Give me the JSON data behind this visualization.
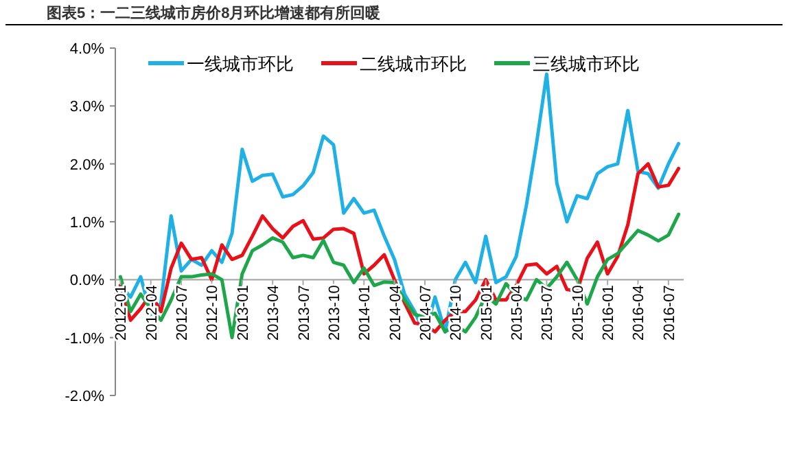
{
  "chart_data": {
    "type": "line",
    "title": "图表5：一二三线城市房价8月环比增速都有所回暖",
    "categories": [
      "2012-01",
      null,
      null,
      "2012-04",
      null,
      null,
      "2012-07",
      null,
      null,
      "2012-10",
      null,
      null,
      "2013-01",
      null,
      null,
      "2013-04",
      null,
      null,
      "2013-07",
      null,
      null,
      "2013-10",
      null,
      null,
      "2014-01",
      null,
      null,
      "2014-04",
      null,
      null,
      "2014-07",
      null,
      null,
      "2014-10",
      null,
      null,
      "2015-01",
      null,
      null,
      "2015-04",
      null,
      null,
      "2015-07",
      null,
      null,
      "2015-10",
      null,
      null,
      "2016-01",
      null,
      null,
      "2016-04",
      null,
      null,
      "2016-07",
      null
    ],
    "series": [
      {
        "name": "一线城市环比",
        "color": "#1fb0e6",
        "values": [
          -0.1,
          -0.3,
          0.05,
          -0.6,
          -0.4,
          1.1,
          0.15,
          0.35,
          0.25,
          0.5,
          0.3,
          0.8,
          2.25,
          1.7,
          1.8,
          1.82,
          1.43,
          1.47,
          1.62,
          1.85,
          2.48,
          2.33,
          1.15,
          1.4,
          1.15,
          1.2,
          0.75,
          0.35,
          -0.25,
          -0.55,
          -0.95,
          -0.3,
          -0.9,
          0.0,
          0.3,
          -0.05,
          0.75,
          -0.05,
          0.05,
          0.4,
          1.28,
          2.35,
          3.55,
          1.67,
          1.0,
          1.45,
          1.4,
          1.83,
          1.95,
          2.0,
          2.92,
          1.87,
          1.83,
          1.58,
          2.0,
          2.35
        ]
      },
      {
        "name": "二线城市环比",
        "color": "#e8111a",
        "values": [
          -0.1,
          -0.7,
          -0.5,
          -0.25,
          -0.55,
          0.2,
          0.63,
          0.35,
          0.38,
          0.0,
          0.6,
          0.35,
          0.42,
          0.75,
          1.1,
          0.88,
          0.72,
          0.92,
          1.02,
          0.7,
          0.72,
          0.87,
          0.88,
          0.8,
          0.1,
          0.25,
          0.43,
          0.0,
          -0.4,
          -0.75,
          -0.78,
          -0.9,
          -0.7,
          -0.55,
          -0.55,
          -0.35,
          0.0,
          -0.35,
          -0.35,
          -0.1,
          0.25,
          0.27,
          0.1,
          0.23,
          -0.17,
          -0.2,
          0.37,
          0.65,
          0.1,
          0.4,
          0.95,
          1.83,
          2.0,
          1.6,
          1.63,
          1.92
        ]
      },
      {
        "name": "三线城市环比",
        "color": "#1ea64a",
        "values": [
          0.05,
          -0.55,
          -0.25,
          -0.5,
          -0.7,
          -0.35,
          0.05,
          0.05,
          0.08,
          0.1,
          0.0,
          -1.0,
          0.1,
          0.5,
          0.6,
          0.72,
          0.65,
          0.38,
          0.42,
          0.38,
          0.68,
          0.3,
          0.25,
          -0.05,
          0.2,
          -0.1,
          -0.04,
          -0.05,
          -0.35,
          -0.6,
          -0.65,
          -0.58,
          -0.9,
          -0.78,
          -0.9,
          -0.65,
          -0.27,
          -0.42,
          -0.07,
          -0.27,
          -0.35,
          0.0,
          -0.15,
          0.05,
          0.3,
          0.0,
          -0.42,
          0.05,
          0.35,
          0.45,
          0.65,
          0.85,
          0.77,
          0.67,
          0.77,
          1.13
        ]
      }
    ],
    "ylim": [
      -2,
      4
    ],
    "yticks": [
      {
        "value": -2,
        "label": "-2.0%"
      },
      {
        "value": -1,
        "label": "-1.0%"
      },
      {
        "value": 0,
        "label": "0.0%"
      },
      {
        "value": 1,
        "label": "1.0%"
      },
      {
        "value": 2,
        "label": "2.0%"
      },
      {
        "value": 3,
        "label": "3.0%"
      },
      {
        "value": 4,
        "label": "4.0%"
      }
    ],
    "legend": "top",
    "grid": false,
    "marker": "none",
    "line_style": "solid"
  }
}
